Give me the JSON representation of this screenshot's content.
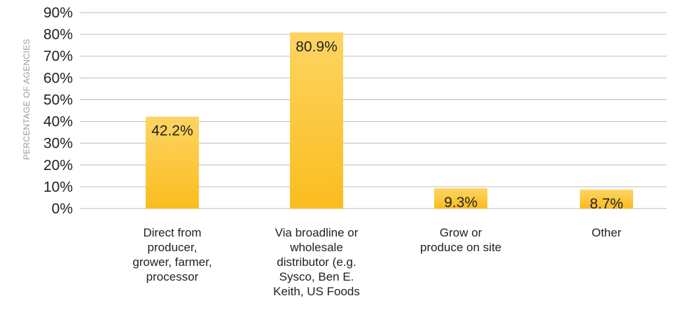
{
  "chart_data": {
    "type": "bar",
    "title": "",
    "xlabel": "",
    "ylabel": "PERCENTAGE OF AGENCIES",
    "ylim": [
      0,
      90
    ],
    "y_ticks": [
      "0%",
      "10%",
      "20%",
      "30%",
      "40%",
      "50%",
      "60%",
      "70%",
      "80%",
      "90%"
    ],
    "categories": [
      [
        "Direct from",
        "producer,",
        "grower, farmer,",
        "processor"
      ],
      [
        "Via broadline or",
        "wholesale",
        "distributor (e.g.",
        "Sysco, Ben E.",
        "Keith, US Foods"
      ],
      [
        "Grow or",
        "produce on site"
      ],
      [
        "Other"
      ]
    ],
    "values": [
      42.2,
      80.9,
      9.3,
      8.7
    ],
    "data_labels": [
      "42.2%",
      "80.9%",
      "9.3%",
      "8.7%"
    ],
    "grid": true,
    "legend": "none",
    "colors": {
      "bar_top": "#FDD463",
      "bar_bottom": "#FBBD1E",
      "grid": "#bdbdbd"
    }
  }
}
